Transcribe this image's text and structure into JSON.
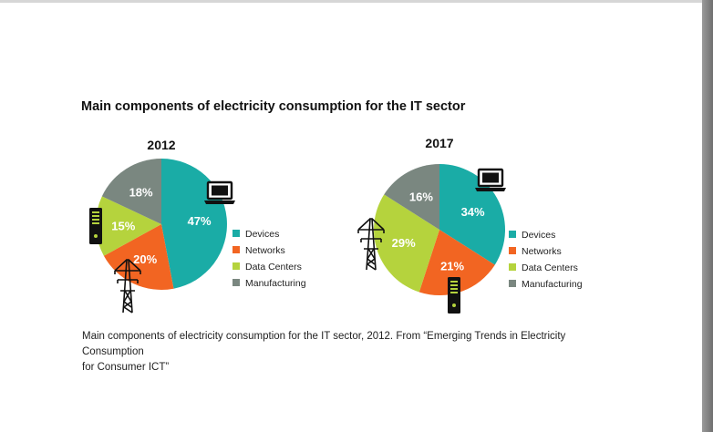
{
  "title": "Main components of electricity consumption for the IT sector",
  "caption": {
    "line1": "Main components of electricity consumption for the IT sector, 2012. From “Emerging Trends in Electricity Consumption",
    "line2": "for Consumer ICT”"
  },
  "colors": {
    "Devices": "#1aaca6",
    "Networks": "#f26522",
    "Data Centers": "#b5d33d",
    "Manufacturing": "#7a8780"
  },
  "chart_data": [
    {
      "type": "pie",
      "title": "2012",
      "categories": [
        "Devices",
        "Networks",
        "Data Centers",
        "Manufacturing"
      ],
      "values": [
        47,
        20,
        15,
        18
      ],
      "labels": [
        "47%",
        "20%",
        "15%",
        "18%"
      ],
      "legend": [
        "Devices",
        "Networks",
        "Data Centers",
        "Manufacturing"
      ],
      "legend_placement": "right"
    },
    {
      "type": "pie",
      "title": "2017",
      "categories": [
        "Devices",
        "Networks",
        "Data Centers",
        "Manufacturing"
      ],
      "values": [
        34,
        21,
        29,
        16
      ],
      "labels": [
        "34%",
        "21%",
        "29%",
        "16%"
      ],
      "legend": [
        "Devices",
        "Networks",
        "Data Centers",
        "Manufacturing"
      ],
      "legend_placement": "right"
    }
  ],
  "icons": [
    "laptop-icon",
    "server-icon",
    "power-tower-icon"
  ]
}
